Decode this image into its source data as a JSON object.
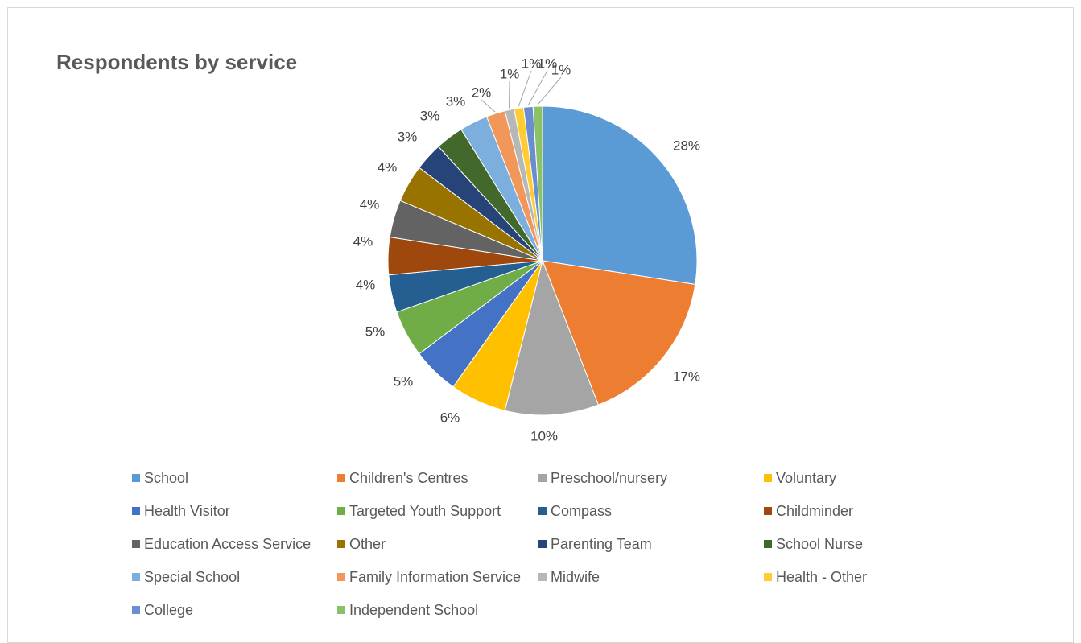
{
  "chart_data": {
    "type": "pie",
    "title": "Respondents by service",
    "categories": [
      "School",
      "Children's Centres",
      "Preschool/nursery",
      "Voluntary",
      "Health Visitor",
      "Targeted Youth Support",
      "Compass",
      "Childminder",
      "Education Access Service",
      "Other",
      "Parenting Team",
      "School Nurse",
      "Special School",
      "Family Information Service",
      "Midwife",
      "Health - Other",
      "College",
      "Independent School"
    ],
    "values": [
      28,
      17,
      10,
      6,
      5,
      5,
      4,
      4,
      4,
      4,
      3,
      3,
      3,
      2,
      1,
      1,
      1,
      1
    ],
    "labels": [
      "28%",
      "17%",
      "10%",
      "6%",
      "5%",
      "5%",
      "4%",
      "4%",
      "4%",
      "4%",
      "3%",
      "3%",
      "3%",
      "2%",
      "1%",
      "1%",
      "1%",
      "1%"
    ],
    "colors": [
      "#5b9bd5",
      "#ed7d31",
      "#a5a5a5",
      "#ffc000",
      "#4472c4",
      "#70ad47",
      "#255e91",
      "#9e480e",
      "#636363",
      "#997300",
      "#264478",
      "#43682b",
      "#7cafdd",
      "#f1975a",
      "#b7b7b7",
      "#ffcd33",
      "#698ed0",
      "#8cc168"
    ],
    "legend_position": "bottom"
  }
}
